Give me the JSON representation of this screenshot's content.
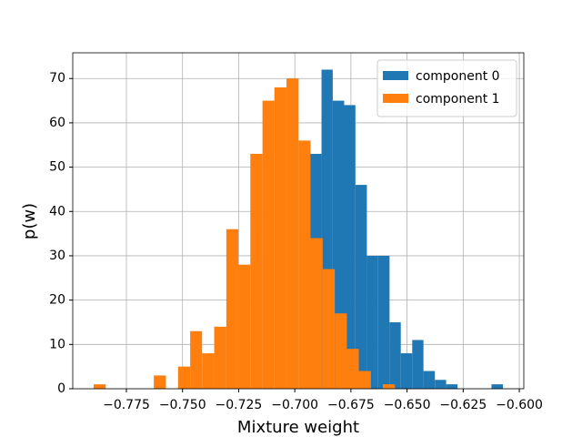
{
  "chart_data": {
    "type": "histogram",
    "xlabel": "Mixture weight",
    "ylabel": "p(w)",
    "xlim": [
      -0.7989,
      -0.598
    ],
    "ylim": [
      0,
      75.8
    ],
    "xticks": [
      {
        "value": -0.775,
        "label": "−0.775"
      },
      {
        "value": -0.75,
        "label": "−0.750"
      },
      {
        "value": -0.725,
        "label": "−0.725"
      },
      {
        "value": -0.7,
        "label": "−0.700"
      },
      {
        "value": -0.675,
        "label": "−0.675"
      },
      {
        "value": -0.65,
        "label": "−0.650"
      },
      {
        "value": -0.625,
        "label": "−0.625"
      },
      {
        "value": -0.6,
        "label": "−0.600"
      }
    ],
    "yticks": [
      0,
      10,
      20,
      30,
      40,
      50,
      60,
      70
    ],
    "grid": true,
    "legend": "upper right",
    "series": [
      {
        "name": "component 0",
        "color": "#1f77b4",
        "bins": [
          -0.6932,
          -0.6881,
          -0.6831,
          -0.678,
          -0.673,
          -0.6679,
          -0.6629,
          -0.6578,
          -0.6528,
          -0.6477,
          -0.6427,
          -0.6376,
          -0.6326,
          -0.6275,
          -0.6225,
          -0.6174,
          -0.6124,
          -0.6073
        ],
        "values": [
          53,
          72,
          65,
          64,
          46,
          30,
          30,
          15,
          8,
          11,
          4,
          2,
          1,
          0,
          0,
          0,
          1
        ]
      },
      {
        "name": "component 1",
        "color": "#ff7f0e",
        "bins": [
          -0.7896,
          -0.7842,
          -0.7788,
          -0.7735,
          -0.7681,
          -0.7628,
          -0.7574,
          -0.752,
          -0.7466,
          -0.7413,
          -0.7359,
          -0.7305,
          -0.7252,
          -0.7198,
          -0.7144,
          -0.7091,
          -0.7037,
          -0.6983,
          -0.693,
          -0.6876,
          -0.6822,
          -0.6768,
          -0.6715,
          -0.6661,
          -0.6608,
          -0.6554
        ],
        "values": [
          1,
          0,
          0,
          0,
          0,
          3,
          0,
          5,
          13,
          8,
          14,
          36,
          28,
          53,
          65,
          68,
          70,
          56,
          34,
          27,
          17,
          9,
          4,
          0,
          1
        ]
      }
    ]
  }
}
